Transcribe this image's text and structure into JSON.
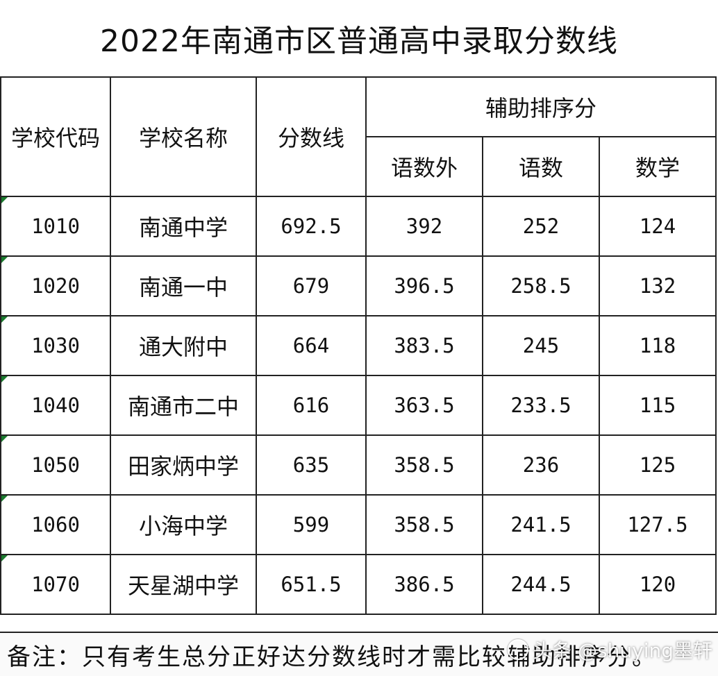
{
  "title": "2022年南通市区普通高中录取分数线",
  "headers": {
    "code": "学校代码",
    "name": "学校名称",
    "score": "分数线",
    "aux": "辅助排序分",
    "sub1": "语数外",
    "sub2": "语数",
    "sub3": "数学"
  },
  "rows": [
    {
      "code": "1010",
      "name": "南通中学",
      "score": "692.5",
      "s1": "392",
      "s2": "252",
      "s3": "124"
    },
    {
      "code": "1020",
      "name": "南通一中",
      "score": "679",
      "s1": "396.5",
      "s2": "258.5",
      "s3": "132"
    },
    {
      "code": "1030",
      "name": "通大附中",
      "score": "664",
      "s1": "383.5",
      "s2": "245",
      "s3": "118"
    },
    {
      "code": "1040",
      "name": "南通市二中",
      "score": "616",
      "s1": "363.5",
      "s2": "233.5",
      "s3": "115"
    },
    {
      "code": "1050",
      "name": "田家炳中学",
      "score": "635",
      "s1": "358.5",
      "s2": "236",
      "s3": "125"
    },
    {
      "code": "1060",
      "name": "小海中学",
      "score": "599",
      "s1": "358.5",
      "s2": "241.5",
      "s3": "127.5"
    },
    {
      "code": "1070",
      "name": "天星湖中学",
      "score": "651.5",
      "s1": "386.5",
      "s2": "244.5",
      "s3": "120"
    }
  ],
  "note": "备注：只有考生总分正好达分数线时才需比较辅助排序分。",
  "watermark": "头条 @shuying墨轩",
  "colors": {
    "marker": "#1a7a2e"
  }
}
